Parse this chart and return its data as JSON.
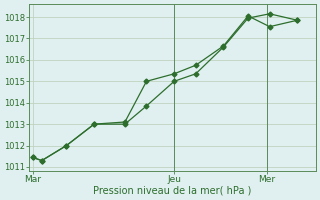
{
  "title": "",
  "xlabel": "Pression niveau de la mer( hPa )",
  "bg_color": "#e0f0f0",
  "grid_color": "#c0d4c0",
  "line_color": "#2d6e2d",
  "spine_color": "#5a8a5a",
  "ylim": [
    1010.8,
    1018.6
  ],
  "yticks": [
    1011,
    1012,
    1013,
    1014,
    1015,
    1016,
    1017,
    1018
  ],
  "xlim": [
    -0.05,
    4.6
  ],
  "x_ticks": [
    0.0,
    2.3,
    3.8
  ],
  "x_tick_labels": [
    "Mar",
    "Jeu",
    "Mer"
  ],
  "vline_x": [
    2.3,
    3.8
  ],
  "series1_x": [
    0.0,
    0.15,
    0.55,
    1.0,
    1.5,
    1.85,
    2.3,
    2.65,
    3.1,
    3.5,
    3.85,
    4.3
  ],
  "series1_y": [
    1011.45,
    1011.3,
    1012.0,
    1013.0,
    1013.0,
    1013.85,
    1015.0,
    1015.35,
    1016.6,
    1017.95,
    1018.15,
    1017.85
  ],
  "series2_x": [
    0.0,
    0.15,
    0.55,
    1.0,
    1.5,
    1.85,
    2.3,
    2.65,
    3.1,
    3.5,
    3.85,
    4.3
  ],
  "series2_y": [
    1011.45,
    1011.3,
    1012.0,
    1013.0,
    1013.1,
    1015.0,
    1015.35,
    1015.75,
    1016.65,
    1018.05,
    1017.55,
    1017.85
  ],
  "marker_size": 2.5,
  "linewidth": 0.9
}
